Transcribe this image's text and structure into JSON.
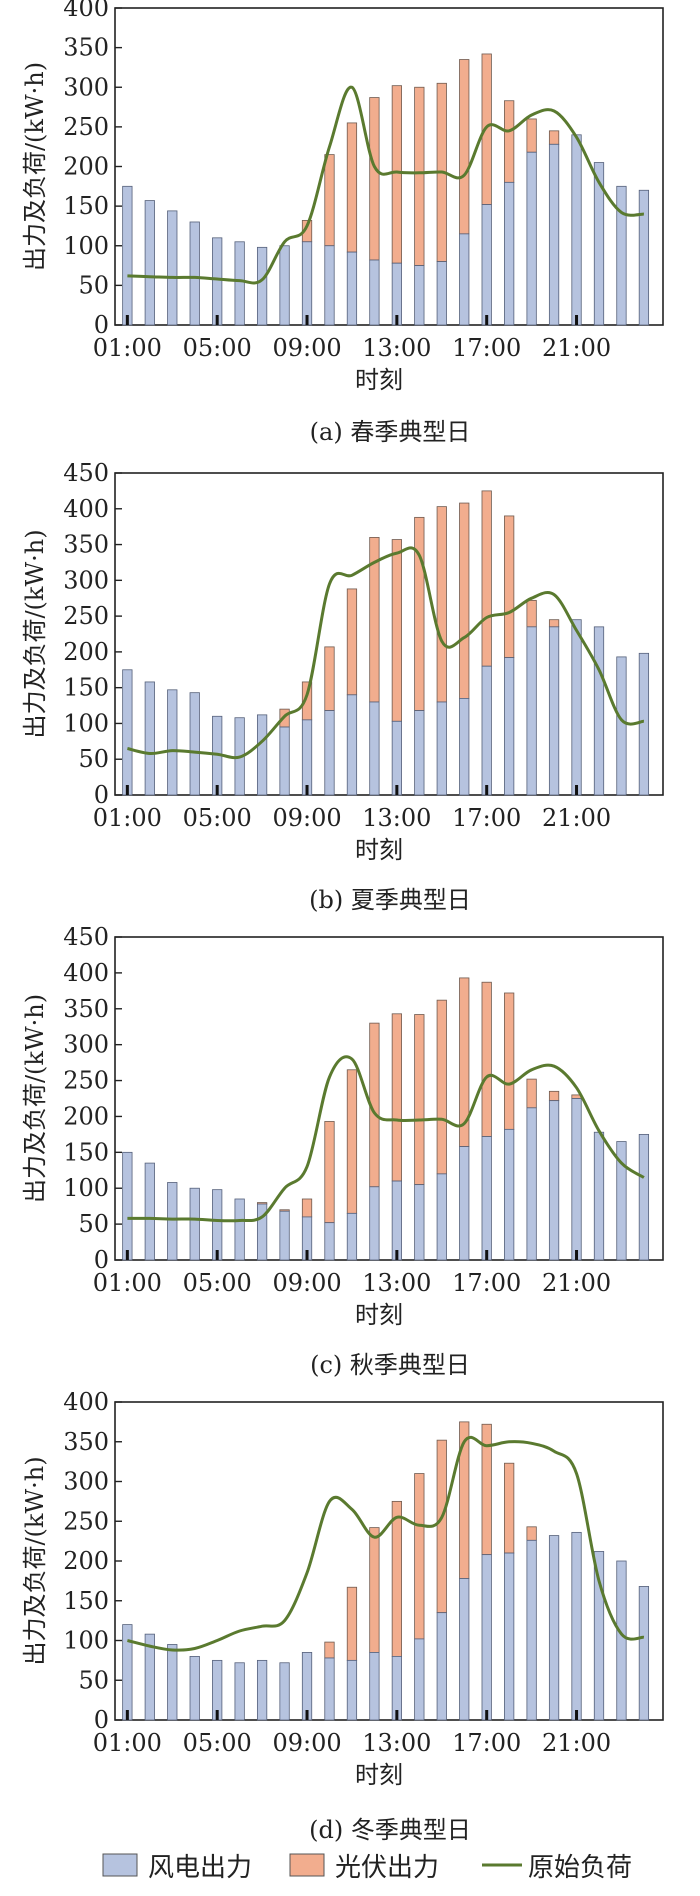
{
  "colors": {
    "wind": "#b6c3df",
    "pv": "#f2ad8e",
    "load": "#5a7a2f",
    "frame": "#222222"
  },
  "legend": {
    "wind": "风电出力",
    "pv": "光伏出力",
    "load": "原始负荷"
  },
  "chart_data": [
    {
      "type": "bar",
      "caption": "(a) 春季典型日",
      "xlabel": "时刻",
      "ylabel": "出力及负荷/(kW·h)",
      "ylim": [
        0,
        400
      ],
      "yticks": [
        0,
        50,
        100,
        150,
        200,
        250,
        300,
        350,
        400
      ],
      "xticks": [
        "01:00",
        "05:00",
        "09:00",
        "13:00",
        "17:00",
        "21:00"
      ],
      "hours": [
        1,
        2,
        3,
        4,
        5,
        6,
        7,
        8,
        9,
        10,
        11,
        12,
        13,
        14,
        15,
        16,
        17,
        18,
        19,
        20,
        21,
        22,
        23,
        24
      ],
      "wind": [
        175,
        157,
        144,
        130,
        110,
        105,
        98,
        100,
        105,
        100,
        92,
        82,
        78,
        75,
        80,
        115,
        152,
        180,
        218,
        228,
        240,
        205,
        175,
        170
      ],
      "total": [
        175,
        157,
        144,
        130,
        110,
        105,
        98,
        100,
        132,
        215,
        255,
        287,
        302,
        300,
        305,
        335,
        342,
        283,
        260,
        245,
        240,
        205,
        175,
        170
      ],
      "load": [
        62,
        61,
        60,
        60,
        58,
        56,
        57,
        105,
        125,
        225,
        300,
        200,
        193,
        192,
        193,
        189,
        250,
        245,
        265,
        270,
        237,
        180,
        142,
        140
      ]
    },
    {
      "type": "bar",
      "caption": "(b) 夏季典型日",
      "xlabel": "时刻",
      "ylabel": "出力及负荷/(kW·h)",
      "ylim": [
        0,
        450
      ],
      "yticks": [
        0,
        50,
        100,
        150,
        200,
        250,
        300,
        350,
        400,
        450
      ],
      "xticks": [
        "01:00",
        "05:00",
        "09:00",
        "13:00",
        "17:00",
        "21:00"
      ],
      "hours": [
        1,
        2,
        3,
        4,
        5,
        6,
        7,
        8,
        9,
        10,
        11,
        12,
        13,
        14,
        15,
        16,
        17,
        18,
        19,
        20,
        21,
        22,
        23,
        24
      ],
      "wind": [
        175,
        158,
        147,
        143,
        110,
        108,
        112,
        95,
        105,
        118,
        140,
        130,
        103,
        118,
        130,
        135,
        180,
        192,
        235,
        235,
        245,
        235,
        193,
        198
      ],
      "total": [
        175,
        158,
        147,
        143,
        110,
        108,
        112,
        120,
        158,
        207,
        288,
        360,
        357,
        388,
        403,
        408,
        425,
        390,
        272,
        245,
        245,
        235,
        193,
        198
      ],
      "load": [
        65,
        58,
        62,
        60,
        57,
        53,
        75,
        110,
        140,
        295,
        307,
        325,
        338,
        335,
        215,
        220,
        248,
        255,
        275,
        280,
        230,
        175,
        105,
        103
      ]
    },
    {
      "type": "bar",
      "caption": "(c) 秋季典型日",
      "xlabel": "时刻",
      "ylabel": "出力及负荷/(kW·h)",
      "ylim": [
        0,
        450
      ],
      "yticks": [
        0,
        50,
        100,
        150,
        200,
        250,
        300,
        350,
        400,
        450
      ],
      "xticks": [
        "01:00",
        "05:00",
        "09:00",
        "13:00",
        "17:00",
        "21:00"
      ],
      "hours": [
        1,
        2,
        3,
        4,
        5,
        6,
        7,
        8,
        9,
        10,
        11,
        12,
        13,
        14,
        15,
        16,
        17,
        18,
        19,
        20,
        21,
        22,
        23,
        24
      ],
      "wind": [
        150,
        135,
        108,
        100,
        98,
        85,
        78,
        68,
        60,
        52,
        65,
        102,
        110,
        105,
        120,
        158,
        172,
        182,
        212,
        222,
        225,
        178,
        165,
        175
      ],
      "total": [
        150,
        135,
        108,
        100,
        98,
        85,
        80,
        70,
        85,
        193,
        265,
        330,
        343,
        342,
        362,
        393,
        387,
        372,
        252,
        235,
        230,
        178,
        165,
        175
      ],
      "load": [
        58,
        58,
        57,
        57,
        55,
        55,
        60,
        100,
        130,
        255,
        280,
        205,
        195,
        195,
        196,
        190,
        255,
        245,
        265,
        270,
        240,
        180,
        135,
        115
      ]
    },
    {
      "type": "bar",
      "caption": "(d) 冬季典型日",
      "xlabel": "时刻",
      "ylabel": "出力及负荷/(kW·h)",
      "ylim": [
        0,
        400
      ],
      "yticks": [
        0,
        50,
        100,
        150,
        200,
        250,
        300,
        350,
        400
      ],
      "xticks": [
        "01:00",
        "05:00",
        "09:00",
        "13:00",
        "17:00",
        "21:00"
      ],
      "hours": [
        1,
        2,
        3,
        4,
        5,
        6,
        7,
        8,
        9,
        10,
        11,
        12,
        13,
        14,
        15,
        16,
        17,
        18,
        19,
        20,
        21,
        22,
        23,
        24
      ],
      "wind": [
        120,
        108,
        95,
        80,
        75,
        72,
        75,
        72,
        85,
        78,
        75,
        85,
        80,
        102,
        135,
        178,
        208,
        210,
        226,
        232,
        236,
        212,
        200,
        168
      ],
      "total": [
        120,
        108,
        95,
        80,
        75,
        72,
        75,
        72,
        85,
        98,
        167,
        242,
        275,
        310,
        352,
        375,
        372,
        323,
        243,
        232,
        236,
        212,
        200,
        168
      ],
      "load": [
        100,
        93,
        88,
        90,
        100,
        112,
        118,
        125,
        185,
        275,
        265,
        230,
        255,
        245,
        255,
        350,
        345,
        350,
        348,
        338,
        310,
        175,
        108,
        104
      ]
    }
  ]
}
